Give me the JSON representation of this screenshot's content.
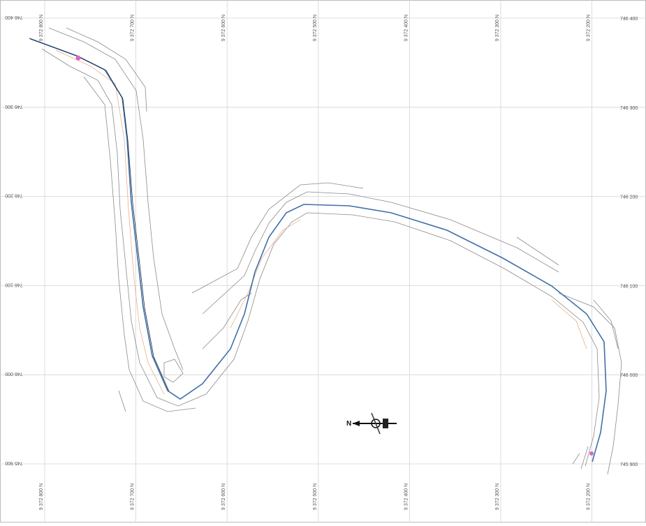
{
  "grid": {
    "x_labels_top": [
      "9 372 800 N",
      "9 372 700 N",
      "9 372 600 N",
      "9 372 500 N",
      "9 372 400 N",
      "9 372 300 N",
      "9 372 200 N"
    ],
    "x_labels_bottom": [
      "9 372 800 N",
      "9 372 700 N",
      "9 372 600 N",
      "9 372 500 N",
      "9 372 400 N",
      "9 372 300 N",
      "9 372 200 N"
    ],
    "y_labels_right": [
      "746 400",
      "746 300",
      "746 200",
      "746 100",
      "746 000",
      "745 900"
    ],
    "y_labels_left": [
      "746 400",
      "746 300",
      "746 200",
      "746 100",
      "746 000",
      "745 900"
    ]
  },
  "north_label": "N"
}
